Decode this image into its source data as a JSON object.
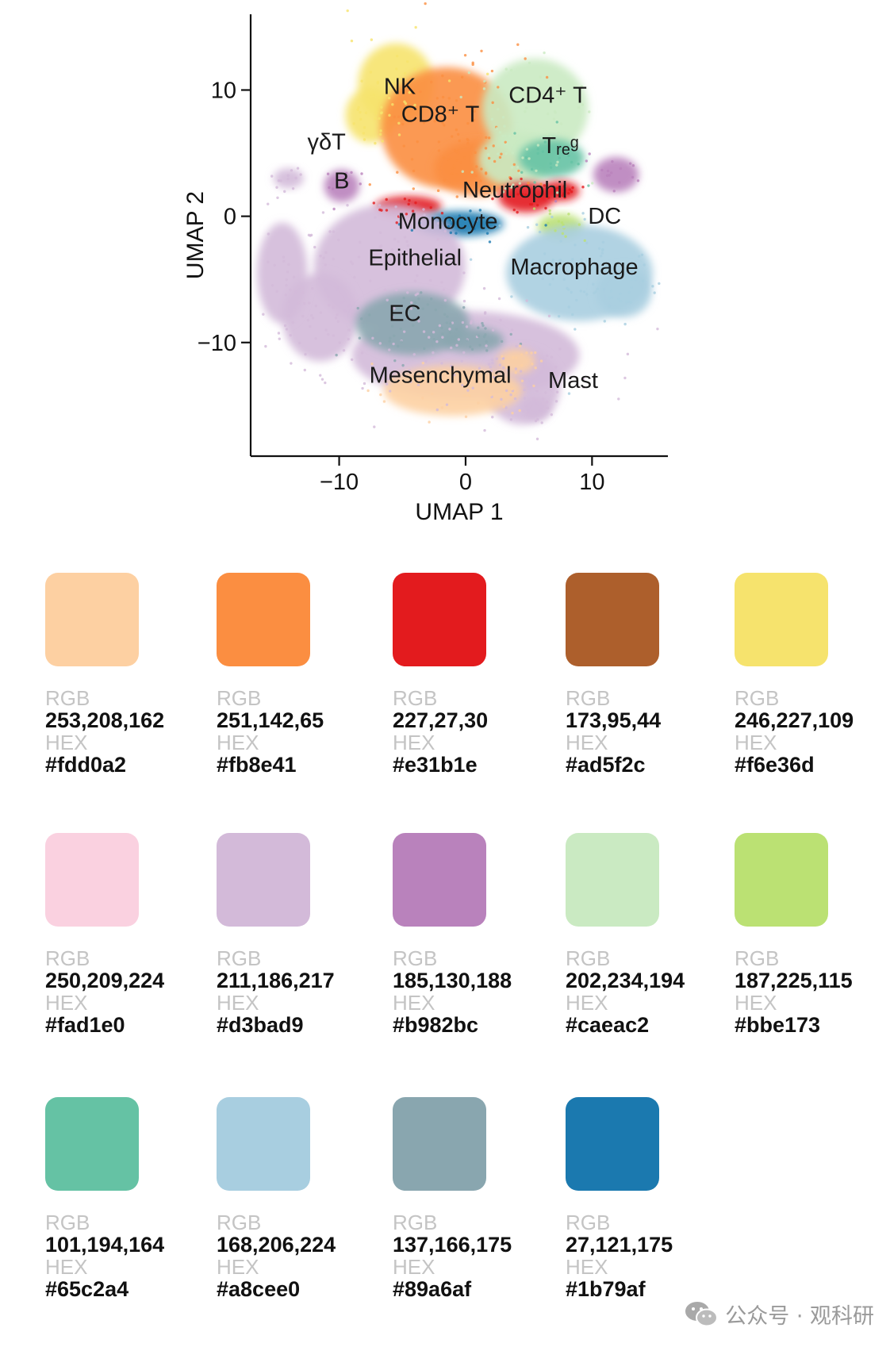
{
  "chart_data": {
    "type": "scatter",
    "xlabel": "UMAP 1",
    "ylabel": "UMAP 2",
    "xlim": [
      -17,
      16
    ],
    "ylim": [
      -19,
      16
    ],
    "xticks": [
      -10,
      0,
      10
    ],
    "yticks": [
      10,
      0,
      -10
    ],
    "xtick_labels": [
      "−10",
      "0",
      "10"
    ],
    "ytick_labels": [
      "10",
      "0",
      "−10"
    ],
    "grid": false,
    "clusters": [
      {
        "label": "NK",
        "color": "#f6e36d",
        "blobs": [
          [
            -5.5,
            10.5,
            3.0,
            3.2
          ],
          [
            -7.5,
            8.0,
            2.0,
            2.2
          ]
        ],
        "label_pos": [
          -5.2,
          9.7
        ]
      },
      {
        "label": "CD8⁺ T",
        "color": "#fb8e41",
        "blobs": [
          [
            -1.5,
            7.0,
            5.2,
            4.8
          ],
          [
            1.0,
            3.8,
            3.5,
            2.2
          ]
        ],
        "label_pos": [
          -2.0,
          7.5
        ]
      },
      {
        "label": "CD4⁺ T",
        "color": "#caeac2",
        "blobs": [
          [
            5.5,
            8.5,
            4.2,
            4.0
          ],
          [
            4.0,
            4.5,
            3.0,
            2.2
          ]
        ],
        "label_pos": [
          6.5,
          9.0
        ]
      },
      {
        "label": "Tᵣₑᵍ",
        "color": "#65c2a4",
        "blobs": [
          [
            6.8,
            4.6,
            2.6,
            1.5
          ]
        ],
        "label_pos": [
          7.5,
          5.0
        ]
      },
      {
        "label": "γδT",
        "color": "#d3bad9",
        "blobs": [
          [
            -14.0,
            3.0,
            1.2,
            0.8
          ]
        ],
        "label_pos": [
          -11.0,
          5.3
        ]
      },
      {
        "label": "B",
        "color": "#b982bc",
        "blobs": [
          [
            -9.8,
            2.4,
            1.4,
            1.3
          ],
          [
            11.9,
            3.3,
            1.8,
            1.4
          ]
        ],
        "label_pos": [
          -9.8,
          2.2
        ]
      },
      {
        "label": "Neutrophil",
        "color": "#e31b1e",
        "blobs": [
          [
            -4.5,
            0.8,
            2.6,
            0.8
          ],
          [
            4.8,
            1.5,
            2.2,
            1.2
          ],
          [
            7.5,
            2.0,
            1.5,
            0.8
          ]
        ],
        "label_pos": [
          3.9,
          1.5
        ]
      },
      {
        "label": "Monocyte",
        "color": "#1b79af",
        "blobs": [
          [
            -0.5,
            -0.6,
            3.5,
            1.0
          ]
        ],
        "label_pos": [
          -1.4,
          -1.0
        ]
      },
      {
        "label": "DC",
        "color": "#bbe173",
        "blobs": [
          [
            7.5,
            -0.8,
            1.8,
            1.0
          ]
        ],
        "label_pos": [
          11.0,
          -0.6
        ]
      },
      {
        "label": "Macrophage",
        "color": "#a8cee0",
        "blobs": [
          [
            9.0,
            -4.5,
            5.8,
            3.8
          ],
          [
            12.5,
            -6.0,
            2.2,
            2.0
          ]
        ],
        "label_pos": [
          8.6,
          -4.6
        ]
      },
      {
        "label": "Epithelial",
        "color": "#d3bad9",
        "blobs": [
          [
            -6.0,
            -4.0,
            6.0,
            5.0
          ],
          [
            -11.5,
            -8.0,
            3.0,
            3.5
          ],
          [
            0.0,
            -11.0,
            9.0,
            3.5
          ],
          [
            4.5,
            -13.5,
            3.0,
            3.0
          ],
          [
            -14.5,
            -4.5,
            2.0,
            4.0
          ]
        ],
        "label_pos": [
          -4.0,
          -3.9
        ]
      },
      {
        "label": "EC",
        "color": "#89a6af",
        "blobs": [
          [
            -4.2,
            -8.5,
            4.5,
            2.5
          ],
          [
            0.5,
            -9.8,
            2.5,
            1.0
          ]
        ],
        "label_pos": [
          -4.8,
          -8.3
        ]
      },
      {
        "label": "Mesenchymal",
        "color": "#fdd0a2",
        "blobs": [
          [
            -1.0,
            -13.8,
            5.5,
            2.0
          ],
          [
            4.0,
            -11.5,
            1.5,
            1.0
          ]
        ],
        "label_pos": [
          -2.0,
          -13.2
        ]
      },
      {
        "label": "Mast",
        "color": "#d3bad9",
        "blobs": [
          [
            5.5,
            -15.2,
            1.2,
            1.0
          ]
        ],
        "label_pos": [
          8.5,
          -13.6
        ]
      }
    ]
  },
  "palette": [
    {
      "color": "#fdd0a2",
      "rgb_label": "RGB",
      "rgb": "253,208,162",
      "hex_label": "HEX",
      "hex": "#fdd0a2"
    },
    {
      "color": "#fb8e41",
      "rgb_label": "RGB",
      "rgb": "251,142,65",
      "hex_label": "HEX",
      "hex": "#fb8e41"
    },
    {
      "color": "#e31b1e",
      "rgb_label": "RGB",
      "rgb": "227,27,30",
      "hex_label": "HEX",
      "hex": "#e31b1e"
    },
    {
      "color": "#ad5f2c",
      "rgb_label": "RGB",
      "rgb": "173,95,44",
      "hex_label": "HEX",
      "hex": "#ad5f2c"
    },
    {
      "color": "#f6e36d",
      "rgb_label": "RGB",
      "rgb": "246,227,109",
      "hex_label": "HEX",
      "hex": "#f6e36d"
    },
    {
      "color": "#fad1e0",
      "rgb_label": "RGB",
      "rgb": "250,209,224",
      "hex_label": "HEX",
      "hex": "#fad1e0"
    },
    {
      "color": "#d3bad9",
      "rgb_label": "RGB",
      "rgb": "211,186,217",
      "hex_label": "HEX",
      "hex": "#d3bad9"
    },
    {
      "color": "#b982bc",
      "rgb_label": "RGB",
      "rgb": "185,130,188",
      "hex_label": "HEX",
      "hex": "#b982bc"
    },
    {
      "color": "#caeac2",
      "rgb_label": "RGB",
      "rgb": "202,234,194",
      "hex_label": "HEX",
      "hex": "#caeac2"
    },
    {
      "color": "#bbe173",
      "rgb_label": "RGB",
      "rgb": "187,225,115",
      "hex_label": "HEX",
      "hex": "#bbe173"
    },
    {
      "color": "#65c2a4",
      "rgb_label": "RGB",
      "rgb": "101,194,164",
      "hex_label": "HEX",
      "hex": "#65c2a4"
    },
    {
      "color": "#a8cee0",
      "rgb_label": "RGB",
      "rgb": "168,206,224",
      "hex_label": "HEX",
      "hex": "#a8cee0"
    },
    {
      "color": "#89a6af",
      "rgb_label": "RGB",
      "rgb": "137,166,175",
      "hex_label": "HEX",
      "hex": "#89a6af"
    },
    {
      "color": "#1b79af",
      "rgb_label": "RGB",
      "rgb": "27,121,175",
      "hex_label": "HEX",
      "hex": "#1b79af"
    }
  ],
  "watermark": {
    "text": "公众号 · 观科研",
    "icon": "wechat-icon",
    "color": "#9a9a9a"
  }
}
